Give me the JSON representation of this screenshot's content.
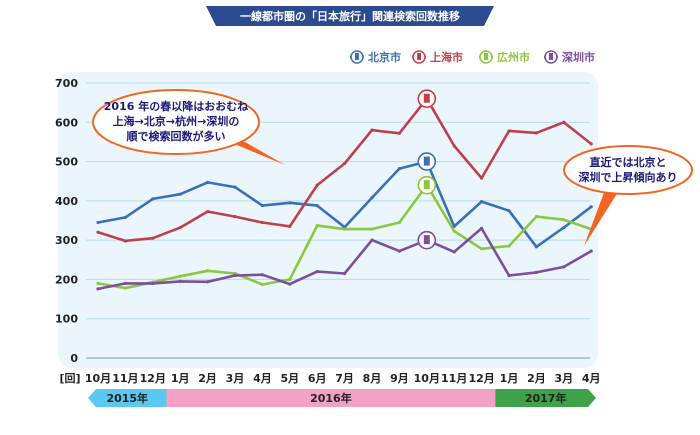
{
  "colors": {
    "background_panel": "#eaf6fb",
    "grid": "#b8dbe8",
    "banner": "#2c4a8f",
    "callout_border": "#f26522",
    "bar_2015": "#5bc8ef",
    "bar_2016": "#f2a0c4",
    "bar_2017": "#3fa24a"
  },
  "chart_data": {
    "type": "line",
    "title": "一線都市圏の「日本旅行」関連検索回数推移",
    "xlabel": "",
    "ylabel": "",
    "ylim": [
      0,
      700
    ],
    "yticks": [
      0,
      100,
      200,
      300,
      400,
      500,
      600,
      700
    ],
    "x_unit": "[回]",
    "categories": [
      "10月",
      "11月",
      "12月",
      "1月",
      "2月",
      "3月",
      "4月",
      "5月",
      "6月",
      "7月",
      "8月",
      "9月",
      "10月",
      "11月",
      "12月",
      "1月",
      "2月",
      "3月",
      "4月"
    ],
    "year_bands": [
      {
        "label": "2015年",
        "from": 0,
        "to": 2
      },
      {
        "label": "2016年",
        "from": 3,
        "to": 14
      },
      {
        "label": "2017年",
        "from": 15,
        "to": 18
      }
    ],
    "legend_position": "top-right",
    "grid": true,
    "series": [
      {
        "name": "北京市",
        "color": "#3b6fb6",
        "icon": "temple-icon",
        "values": [
          345,
          358,
          405,
          417,
          447,
          435,
          388,
          395,
          388,
          333,
          408,
          482,
          500,
          335,
          398,
          375,
          283,
          332,
          385
        ],
        "marker_index": 12
      },
      {
        "name": "上海市",
        "color": "#c0404a",
        "icon": "tower-icon",
        "values": [
          320,
          298,
          305,
          332,
          373,
          360,
          345,
          335,
          440,
          495,
          580,
          572,
          660,
          540,
          458,
          578,
          573,
          600,
          545
        ],
        "marker_index": 12
      },
      {
        "name": "広州市",
        "color": "#8dc63f",
        "icon": "tower-icon",
        "values": [
          190,
          178,
          193,
          208,
          222,
          215,
          187,
          200,
          337,
          328,
          328,
          345,
          440,
          323,
          278,
          285,
          360,
          352,
          328
        ],
        "marker_index": 12
      },
      {
        "name": "深圳市",
        "color": "#7b4fa0",
        "icon": "skyline-icon",
        "values": [
          176,
          190,
          190,
          195,
          194,
          210,
          212,
          188,
          220,
          215,
          300,
          272,
          300,
          270,
          330,
          210,
          218,
          232,
          272
        ],
        "marker_index": 12
      }
    ]
  },
  "callouts": [
    {
      "lines": [
        "2016 年の春以降はおおむね",
        "上海→北京→杭州→深圳の",
        "順で検索回数が多い"
      ]
    },
    {
      "lines": [
        "直近では北京と",
        "深圳で上昇傾向あり"
      ]
    }
  ]
}
